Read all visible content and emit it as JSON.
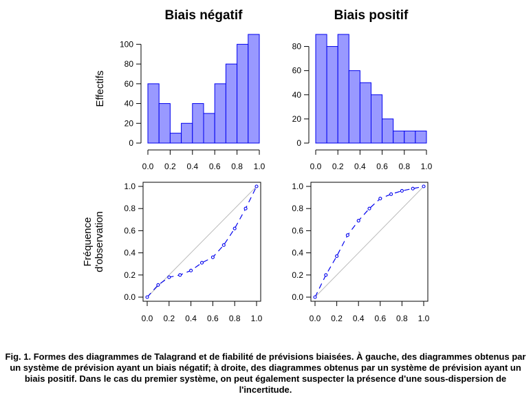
{
  "chart_data": [
    {
      "type": "bar",
      "title": "Biais négatif",
      "xlabel": "",
      "ylabel": "Effectifs",
      "x_ticks": [
        "0.0",
        "0.2",
        "0.4",
        "0.6",
        "0.8",
        "1.0"
      ],
      "y_ticks": [
        "0",
        "20",
        "40",
        "60",
        "80",
        "100"
      ],
      "bin_edges": [
        0,
        0.1,
        0.2,
        0.3,
        0.4,
        0.5,
        0.6,
        0.7,
        0.8,
        0.9,
        1.0
      ],
      "values": [
        60,
        40,
        10,
        20,
        40,
        30,
        60,
        80,
        100,
        110
      ],
      "xlim": [
        0,
        1
      ],
      "ylim": [
        0,
        110
      ],
      "color": "#9999ff",
      "edge_color": "#0000ee"
    },
    {
      "type": "bar",
      "title": "Biais positif",
      "xlabel": "",
      "ylabel": "",
      "x_ticks": [
        "0.0",
        "0.2",
        "0.4",
        "0.6",
        "0.8",
        "1.0"
      ],
      "y_ticks": [
        "0",
        "20",
        "40",
        "60",
        "80"
      ],
      "bin_edges": [
        0,
        0.1,
        0.2,
        0.3,
        0.4,
        0.5,
        0.6,
        0.7,
        0.8,
        0.9,
        1.0
      ],
      "values": [
        90,
        80,
        90,
        60,
        50,
        40,
        20,
        10,
        10,
        10
      ],
      "xlim": [
        0,
        1
      ],
      "ylim": [
        0,
        90
      ],
      "color": "#9999ff",
      "edge_color": "#0000ee"
    },
    {
      "type": "line",
      "title": "",
      "xlabel": "",
      "ylabel": "Fréquence d'observation",
      "ylabel_lines": [
        "Fréquence",
        "d'observation"
      ],
      "x_ticks": [
        "0.0",
        "0.2",
        "0.4",
        "0.6",
        "0.8",
        "1.0"
      ],
      "y_ticks": [
        "0.0",
        "0.2",
        "0.4",
        "0.6",
        "0.8",
        "1.0"
      ],
      "xlim": [
        0,
        1
      ],
      "ylim": [
        0,
        1
      ],
      "reference_diagonal": true,
      "diagonal_color": "#bbbbbb",
      "series": [
        {
          "x": [
            0.0,
            0.1,
            0.2,
            0.3,
            0.4,
            0.5,
            0.6,
            0.7,
            0.8,
            0.9,
            1.0
          ],
          "y": [
            0.0,
            0.11,
            0.18,
            0.2,
            0.24,
            0.31,
            0.36,
            0.47,
            0.62,
            0.8,
            1.0
          ],
          "color": "#0000ee",
          "line_style": "dashed",
          "marker": "open-circle"
        }
      ]
    },
    {
      "type": "line",
      "title": "",
      "xlabel": "",
      "ylabel": "",
      "x_ticks": [
        "0.0",
        "0.2",
        "0.4",
        "0.6",
        "0.8",
        "1.0"
      ],
      "y_ticks": [
        "0.0",
        "0.2",
        "0.4",
        "0.6",
        "0.8",
        "1.0"
      ],
      "xlim": [
        0,
        1
      ],
      "ylim": [
        0,
        1
      ],
      "reference_diagonal": true,
      "diagonal_color": "#bbbbbb",
      "series": [
        {
          "x": [
            0.0,
            0.1,
            0.2,
            0.3,
            0.4,
            0.5,
            0.6,
            0.7,
            0.8,
            0.9,
            1.0
          ],
          "y": [
            0.0,
            0.2,
            0.37,
            0.56,
            0.69,
            0.8,
            0.89,
            0.93,
            0.96,
            0.98,
            1.0
          ],
          "color": "#0000ee",
          "line_style": "dashed",
          "marker": "open-circle"
        }
      ]
    }
  ],
  "caption": "Fig. 1. Formes des diagrammes de Talagrand et de fiabilité de prévisions biaisées. À gauche, des diagrammes obtenus par un système de prévision ayant un biais négatif; à droite, des diagrammes obtenus par un système de prévision ayant un biais positif. Dans le cas du premier système, on peut également suspecter la présence d'une sous-dispersion de l'incertitude."
}
